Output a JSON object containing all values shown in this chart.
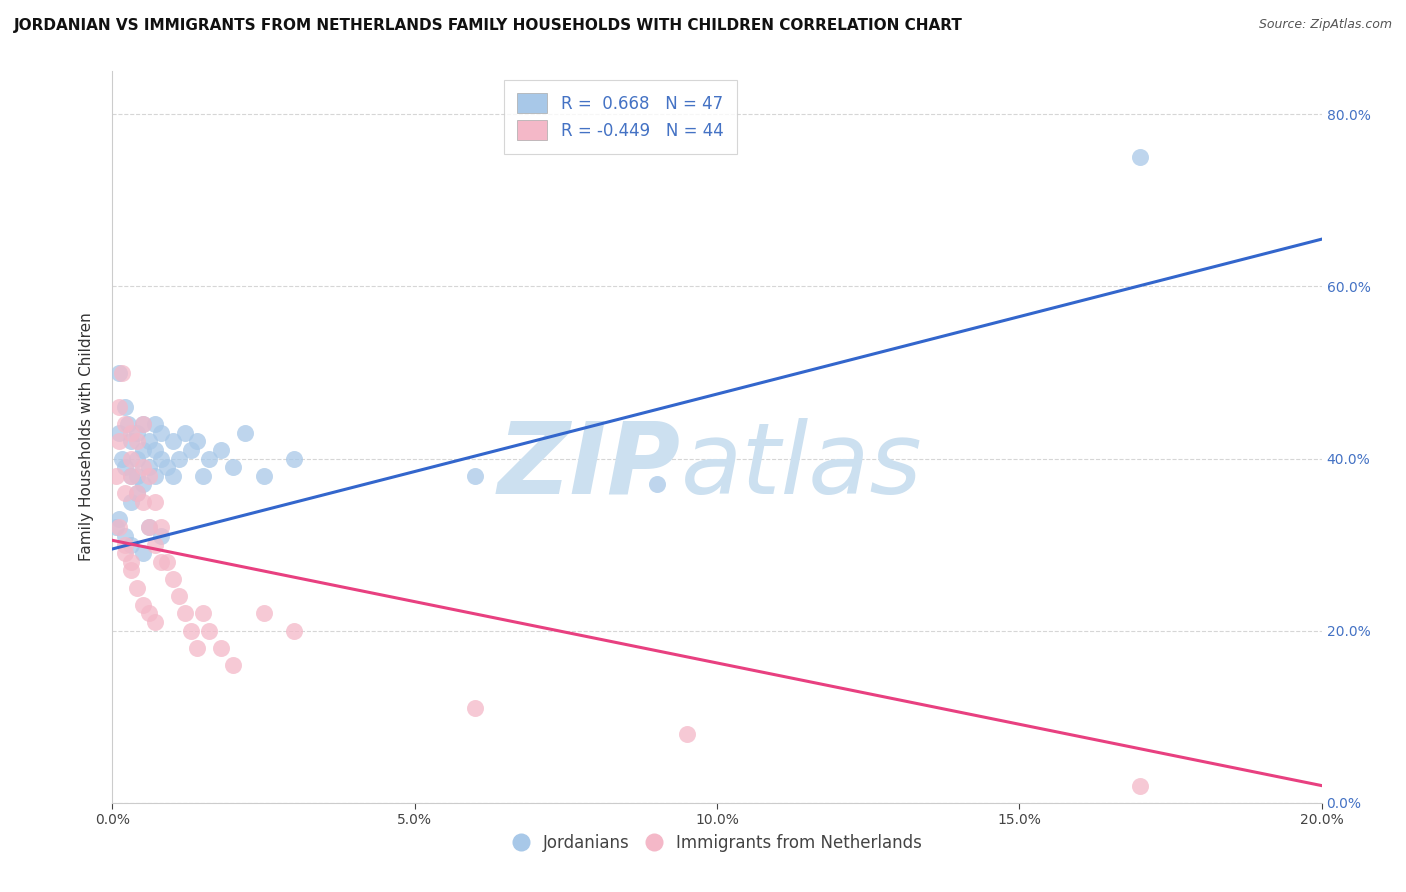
{
  "title": "JORDANIAN VS IMMIGRANTS FROM NETHERLANDS FAMILY HOUSEHOLDS WITH CHILDREN CORRELATION CHART",
  "source": "Source: ZipAtlas.com",
  "ylabel": "Family Households with Children",
  "legend_labels": [
    "Jordanians",
    "Immigrants from Netherlands"
  ],
  "r_blue": 0.668,
  "n_blue": 47,
  "r_pink": -0.449,
  "n_pink": 44,
  "blue_color": "#a8c8e8",
  "pink_color": "#f4b8c8",
  "line_blue": "#3366cc",
  "line_pink": "#e84080",
  "xmin": 0.0,
  "xmax": 0.2,
  "ymin": 0.0,
  "ymax": 0.85,
  "blue_line_x0": 0.0,
  "blue_line_y0": 0.295,
  "blue_line_x1": 0.2,
  "blue_line_y1": 0.655,
  "pink_line_x0": 0.0,
  "pink_line_y0": 0.305,
  "pink_line_x1": 0.2,
  "pink_line_y1": 0.02,
  "blue_scatter_x": [
    0.0005,
    0.001,
    0.001,
    0.0015,
    0.002,
    0.002,
    0.0025,
    0.003,
    0.003,
    0.003,
    0.004,
    0.004,
    0.004,
    0.004,
    0.005,
    0.005,
    0.005,
    0.006,
    0.006,
    0.007,
    0.007,
    0.007,
    0.008,
    0.008,
    0.009,
    0.01,
    0.01,
    0.011,
    0.012,
    0.013,
    0.014,
    0.015,
    0.016,
    0.018,
    0.02,
    0.022,
    0.025,
    0.03,
    0.06,
    0.09,
    0.001,
    0.002,
    0.003,
    0.005,
    0.006,
    0.008,
    0.17
  ],
  "blue_scatter_y": [
    0.32,
    0.5,
    0.43,
    0.4,
    0.46,
    0.39,
    0.44,
    0.42,
    0.38,
    0.35,
    0.4,
    0.38,
    0.36,
    0.43,
    0.41,
    0.37,
    0.44,
    0.39,
    0.42,
    0.38,
    0.41,
    0.44,
    0.4,
    0.43,
    0.39,
    0.42,
    0.38,
    0.4,
    0.43,
    0.41,
    0.42,
    0.38,
    0.4,
    0.41,
    0.39,
    0.43,
    0.38,
    0.4,
    0.38,
    0.37,
    0.33,
    0.31,
    0.3,
    0.29,
    0.32,
    0.31,
    0.75
  ],
  "pink_scatter_x": [
    0.0005,
    0.001,
    0.001,
    0.0015,
    0.002,
    0.002,
    0.003,
    0.003,
    0.003,
    0.004,
    0.004,
    0.005,
    0.005,
    0.005,
    0.006,
    0.006,
    0.007,
    0.007,
    0.008,
    0.008,
    0.009,
    0.01,
    0.011,
    0.012,
    0.013,
    0.014,
    0.015,
    0.016,
    0.018,
    0.02,
    0.002,
    0.003,
    0.004,
    0.005,
    0.006,
    0.007,
    0.025,
    0.03,
    0.06,
    0.095,
    0.001,
    0.002,
    0.003,
    0.17
  ],
  "pink_scatter_y": [
    0.38,
    0.46,
    0.42,
    0.5,
    0.44,
    0.36,
    0.43,
    0.4,
    0.38,
    0.36,
    0.42,
    0.39,
    0.44,
    0.35,
    0.32,
    0.38,
    0.35,
    0.3,
    0.28,
    0.32,
    0.28,
    0.26,
    0.24,
    0.22,
    0.2,
    0.18,
    0.22,
    0.2,
    0.18,
    0.16,
    0.29,
    0.27,
    0.25,
    0.23,
    0.22,
    0.21,
    0.22,
    0.2,
    0.11,
    0.08,
    0.32,
    0.3,
    0.28,
    0.02
  ],
  "watermark_zip": "ZIP",
  "watermark_atlas": "atlas",
  "watermark_color": "#cce0f0",
  "title_fontsize": 11,
  "source_fontsize": 9,
  "label_fontsize": 11,
  "tick_fontsize": 10,
  "legend_fontsize": 12
}
